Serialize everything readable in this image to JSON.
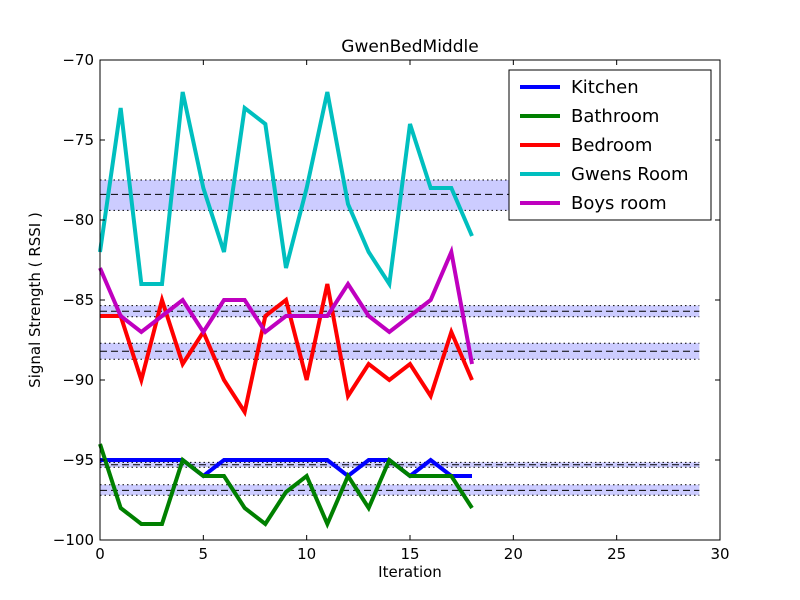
{
  "chart_data": {
    "type": "line",
    "title": "GwenBedMiddle",
    "xlabel": "Iteration",
    "ylabel": "Signal Strength  ( RSSI )",
    "xlim": [
      0,
      30
    ],
    "ylim": [
      -100,
      -70
    ],
    "xticks": [
      0,
      5,
      10,
      15,
      20,
      25,
      30
    ],
    "yticks": [
      -100,
      -95,
      -90,
      -85,
      -80,
      -75,
      -70
    ],
    "legend_position": "top-right",
    "grid": false,
    "x": [
      0,
      1,
      2,
      3,
      4,
      5,
      6,
      7,
      8,
      9,
      10,
      11,
      12,
      13,
      14,
      15,
      16,
      17,
      18
    ],
    "series": [
      {
        "name": "Kitchen",
        "color": "#0000ff",
        "values": [
          -95,
          -95,
          -95,
          -95,
          -95,
          -96,
          -95,
          -95,
          -95,
          -95,
          -95,
          -95,
          -96,
          -95,
          -95,
          -96,
          -95,
          -96,
          -96
        ]
      },
      {
        "name": "Bathroom",
        "color": "#008000",
        "values": [
          -94,
          -98,
          -99,
          -99,
          -95,
          -96,
          -96,
          -98,
          -99,
          -97,
          -96,
          -99,
          -96,
          -98,
          -95,
          -96,
          -96,
          -96,
          -98
        ]
      },
      {
        "name": "Bedroom",
        "color": "#ff0000",
        "values": [
          -86,
          -86,
          -90,
          -85,
          -89,
          -87,
          -90,
          -92,
          -86,
          -85,
          -90,
          -84,
          -91,
          -89,
          -90,
          -89,
          -91,
          -87,
          -90
        ]
      },
      {
        "name": "Gwens Room",
        "color": "#00bfbf",
        "values": [
          -82,
          -73,
          -84,
          -84,
          -72,
          -78,
          -82,
          -73,
          -74,
          -83,
          -78,
          -72,
          -79,
          -82,
          -84,
          -74,
          -78,
          -78,
          -81
        ]
      },
      {
        "name": "Boys room",
        "color": "#bf00bf",
        "values": [
          -83,
          -86,
          -87,
          -86,
          -85,
          -87,
          -85,
          -85,
          -87,
          -86,
          -86,
          -86,
          -84,
          -86,
          -87,
          -86,
          -85,
          -82,
          -89
        ]
      }
    ],
    "bands": [
      {
        "mean": -78.4,
        "low": -79.4,
        "high": -77.5
      },
      {
        "mean": -85.7,
        "low": -86.05,
        "high": -85.35
      },
      {
        "mean": -88.2,
        "low": -88.7,
        "high": -87.7
      },
      {
        "mean": -95.3,
        "low": -95.45,
        "high": -95.15
      },
      {
        "mean": -96.9,
        "low": -97.2,
        "high": -96.55
      }
    ],
    "band_xrange": [
      0,
      29
    ],
    "band_color": "#ccccff"
  }
}
